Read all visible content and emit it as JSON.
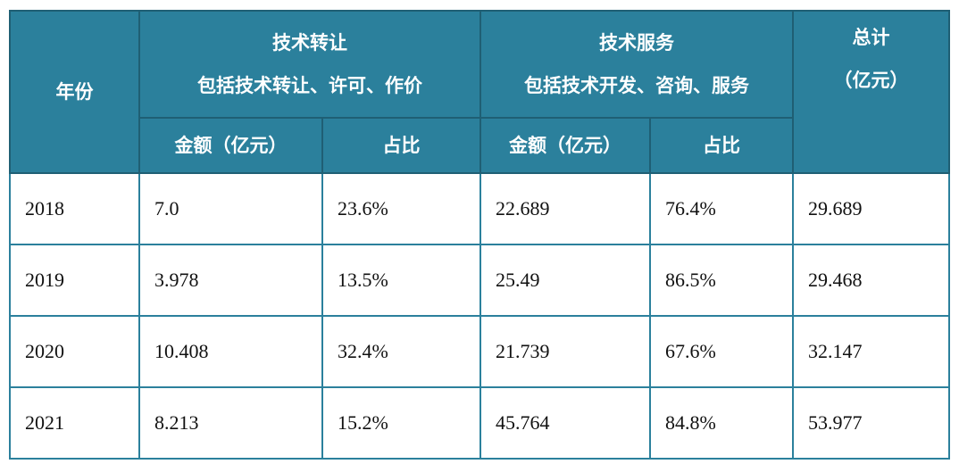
{
  "table": {
    "header": {
      "year": "年份",
      "transfer": {
        "title": "技术转让",
        "note": "包括技术转让、许可、作价",
        "amount": "金额（亿元）",
        "share": "占比"
      },
      "service": {
        "title": "技术服务",
        "note": "包括技术开发、咨询、服务",
        "amount": "金额（亿元）",
        "share": "占比"
      },
      "total": {
        "title": "总计",
        "unit": "（亿元）"
      }
    },
    "rows": [
      [
        "2018",
        "7.0",
        "23.6%",
        "22.689",
        "76.4%",
        "29.689"
      ],
      [
        "2019",
        "3.978",
        "13.5%",
        "25.49",
        "86.5%",
        "29.468"
      ],
      [
        "2020",
        "10.408",
        "32.4%",
        "21.739",
        "67.6%",
        "32.147"
      ],
      [
        "2021",
        "8.213",
        "15.2%",
        "45.764",
        "84.8%",
        "53.977"
      ]
    ]
  }
}
